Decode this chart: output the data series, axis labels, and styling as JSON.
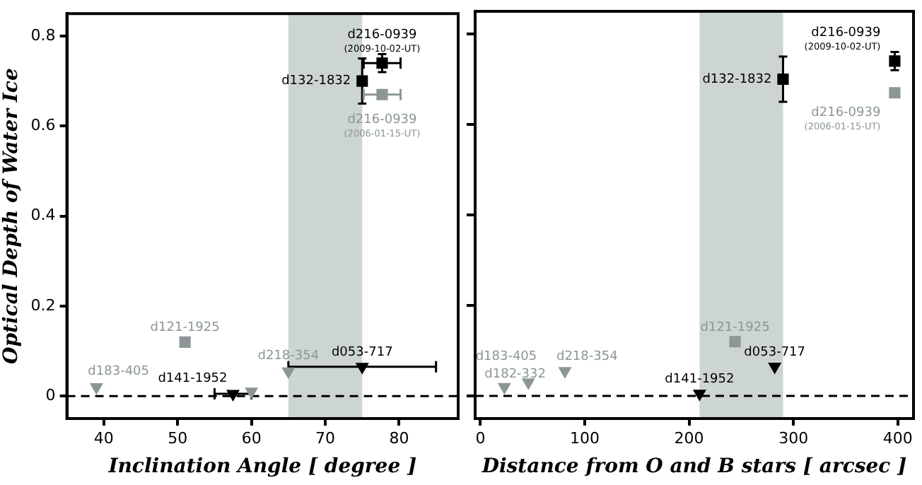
{
  "chart_data": [
    {
      "type": "scatter",
      "xlabel": "Inclination Angle [ degree ]",
      "ylabel": "Optical Depth of Water Ice",
      "xlim": [
        35,
        88
      ],
      "xticks": [
        40,
        50,
        60,
        70,
        80
      ],
      "ylim": [
        -0.05,
        0.85
      ],
      "yticks": [
        0,
        0.2,
        0.4,
        0.6,
        0.8
      ],
      "ref_lines": [
        {
          "axis": "y",
          "value": 0,
          "color": "#000000",
          "line_style": "dashed"
        }
      ],
      "bands": [
        {
          "axis": "x",
          "from": 65,
          "to": 75,
          "color": "#cdd5d3"
        }
      ],
      "series": [
        {
          "name": "d216-0939\n(2009-10-02-UT)",
          "color": "#000000",
          "marker": "square",
          "x": [
            77.7
          ],
          "values": [
            0.74
          ],
          "errors": [
            0.02
          ],
          "xerrors": [
            2.5
          ]
        },
        {
          "name": "d132-1832",
          "color": "#000000",
          "marker": "square",
          "x": [
            75
          ],
          "values": [
            0.7
          ],
          "errors": [
            0.05
          ]
        },
        {
          "name": "d216-0939\n(2006-01-15-UT)",
          "color": "#8c9696",
          "marker": "square",
          "x": [
            77.7
          ],
          "values": [
            0.67
          ],
          "errors": [
            0.005
          ],
          "xerrors": [
            2.5
          ]
        },
        {
          "name": "d121-1925",
          "color": "#8c9696",
          "marker": "square",
          "x": [
            51
          ],
          "values": [
            0.12
          ],
          "errors": [
            0.005
          ]
        },
        {
          "name": "d183-405",
          "color": "#8c9696",
          "marker": "triangle",
          "x": [
            39
          ],
          "values": [
            0.02
          ]
        },
        {
          "name": "d141-1952",
          "color": "#000000",
          "marker": "triangle",
          "x": [
            57.5
          ],
          "values": [
            0.005
          ],
          "xerrors": [
            2.5
          ]
        },
        {
          "color": "#8c9696",
          "marker": "triangle",
          "x": [
            60
          ],
          "values": [
            0.01
          ]
        },
        {
          "name": "d218-354",
          "color": "#8c9696",
          "marker": "triangle",
          "x": [
            65
          ],
          "values": [
            0.055
          ]
        },
        {
          "name": "d053-717",
          "color": "#000000",
          "marker": "triangle",
          "x": [
            75
          ],
          "values": [
            0.065
          ],
          "xerrors": [
            10
          ]
        }
      ]
    },
    {
      "type": "scatter",
      "xlabel": "Distance from O and B stars [ arcsec ]",
      "xlim": [
        -5,
        415
      ],
      "xticks": [
        0,
        100,
        200,
        300,
        400
      ],
      "ylim": [
        -0.05,
        0.85
      ],
      "yticks": [
        0,
        0.2,
        0.4,
        0.6,
        0.8
      ],
      "tick_labels": "x",
      "ref_lines": [
        {
          "axis": "y",
          "value": 0,
          "color": "#000000",
          "line_style": "dashed"
        }
      ],
      "bands": [
        {
          "axis": "x",
          "from": 210,
          "to": 290,
          "color": "#cdd5d3"
        }
      ],
      "series": [
        {
          "name": "d216-0939\n(2009-10-02-UT)",
          "color": "#000000",
          "marker": "square",
          "x": [
            397
          ],
          "values": [
            0.74
          ],
          "errors": [
            0.02
          ]
        },
        {
          "name": "d132-1832",
          "color": "#000000",
          "marker": "square",
          "x": [
            290
          ],
          "values": [
            0.7
          ],
          "errors": [
            0.05
          ]
        },
        {
          "name": "d216-0939\n(2006-01-15-UT)",
          "color": "#8c9696",
          "marker": "square",
          "x": [
            397
          ],
          "values": [
            0.67
          ],
          "errors": [
            0.005
          ]
        },
        {
          "name": "d121-1925",
          "color": "#8c9696",
          "marker": "square",
          "x": [
            244
          ],
          "values": [
            0.12
          ],
          "errors": [
            0.005
          ]
        },
        {
          "name": "d053-717",
          "color": "#000000",
          "marker": "triangle",
          "x": [
            282
          ],
          "values": [
            0.065
          ]
        },
        {
          "name": "d141-1952",
          "color": "#000000",
          "marker": "triangle",
          "x": [
            210
          ],
          "values": [
            0.005
          ]
        },
        {
          "name": "d218-354",
          "color": "#8c9696",
          "marker": "triangle",
          "x": [
            81
          ],
          "values": [
            0.055
          ]
        },
        {
          "name": "d183-405",
          "color": "#8c9696",
          "marker": "triangle",
          "x": [
            46
          ],
          "values": [
            0.03
          ]
        },
        {
          "name": "d182-332",
          "color": "#8c9696",
          "marker": "triangle",
          "x": [
            23
          ],
          "values": [
            0.02
          ]
        }
      ]
    }
  ]
}
